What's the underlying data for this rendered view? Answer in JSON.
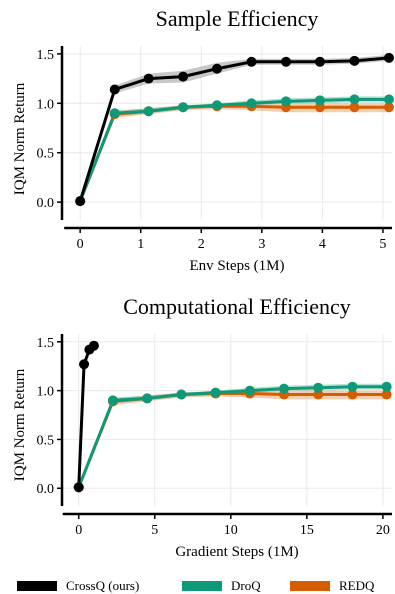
{
  "colors": {
    "crossq": "#000000",
    "droq": "#0e9a78",
    "redq": "#d55e00"
  },
  "legend": [
    {
      "label": "CrossQ (ours)",
      "color": "#000000"
    },
    {
      "label": "DroQ",
      "color": "#0e9a78"
    },
    {
      "label": "REDQ",
      "color": "#d55e00"
    }
  ],
  "chart_data": [
    {
      "type": "line",
      "title": "Sample Efficiency",
      "xlabel": "Env Steps (1M)",
      "ylabel": "IQM Norm Return",
      "xlim": [
        -0.3,
        5.15
      ],
      "ylim": [
        -0.1,
        1.58
      ],
      "xticks": [
        0,
        1,
        2,
        3,
        4,
        5
      ],
      "yticks": [
        0.0,
        0.5,
        1.0,
        1.5
      ],
      "ytick_labels": [
        "0.0",
        "0.5",
        "1.0",
        "1.5"
      ],
      "grid": true,
      "series": [
        {
          "name": "CrossQ (ours)",
          "color": "#000000",
          "x": [
            0,
            0.57,
            1.13,
            1.7,
            2.26,
            2.83,
            3.4,
            3.96,
            4.53,
            5.1
          ],
          "y": [
            0.01,
            1.14,
            1.25,
            1.27,
            1.35,
            1.42,
            1.42,
            1.42,
            1.43,
            1.46
          ],
          "lo": [
            0.01,
            1.1,
            1.2,
            1.21,
            1.3,
            1.39,
            1.39,
            1.39,
            1.4,
            1.43
          ],
          "hi": [
            0.01,
            1.18,
            1.3,
            1.33,
            1.41,
            1.45,
            1.45,
            1.45,
            1.46,
            1.49
          ]
        },
        {
          "name": "DroQ",
          "color": "#0e9a78",
          "x": [
            0,
            0.57,
            1.13,
            1.7,
            2.26,
            2.83,
            3.4,
            3.96,
            4.53,
            5.1
          ],
          "y": [
            0.01,
            0.9,
            0.92,
            0.96,
            0.98,
            1.0,
            1.02,
            1.03,
            1.04,
            1.04
          ],
          "lo": [
            0.01,
            0.87,
            0.9,
            0.94,
            0.96,
            0.98,
            1.0,
            1.0,
            1.01,
            1.01
          ],
          "hi": [
            0.01,
            0.93,
            0.95,
            0.98,
            1.0,
            1.03,
            1.05,
            1.06,
            1.07,
            1.07
          ]
        },
        {
          "name": "REDQ",
          "color": "#d55e00",
          "x": [
            0,
            0.57,
            1.13,
            1.7,
            2.26,
            2.83,
            3.4,
            3.96,
            4.53,
            5.1
          ],
          "y": [
            0.01,
            0.89,
            0.92,
            0.96,
            0.97,
            0.97,
            0.96,
            0.96,
            0.96,
            0.96
          ],
          "lo": [
            0.01,
            0.85,
            0.89,
            0.93,
            0.94,
            0.93,
            0.91,
            0.91,
            0.91,
            0.91
          ],
          "hi": [
            0.01,
            0.92,
            0.95,
            0.98,
            0.99,
            1.0,
            1.0,
            1.0,
            1.0,
            1.0
          ]
        }
      ]
    },
    {
      "type": "line",
      "title": "Computational Efficiency",
      "xlabel": "Gradient Steps (1M)",
      "ylabel": "IQM Norm Return",
      "xlim": [
        -1.1,
        20.6
      ],
      "ylim": [
        -0.1,
        1.58
      ],
      "xticks": [
        0,
        5,
        10,
        15,
        20
      ],
      "yticks": [
        0.0,
        0.5,
        1.0,
        1.5
      ],
      "ytick_labels": [
        "0.0",
        "0.5",
        "1.0",
        "1.5"
      ],
      "grid": true,
      "series": [
        {
          "name": "CrossQ (ours)",
          "color": "#000000",
          "x": [
            0,
            0.35,
            0.7,
            1.0
          ],
          "y": [
            0.01,
            1.27,
            1.42,
            1.46
          ],
          "lo": [
            0.01,
            1.25,
            1.4,
            1.44
          ],
          "hi": [
            0.01,
            1.29,
            1.44,
            1.48
          ]
        },
        {
          "name": "DroQ",
          "color": "#0e9a78",
          "x": [
            0,
            2.25,
            4.5,
            6.75,
            9.0,
            11.25,
            13.5,
            15.75,
            18.0,
            20.25
          ],
          "y": [
            0.01,
            0.9,
            0.92,
            0.96,
            0.98,
            1.0,
            1.02,
            1.03,
            1.04,
            1.04
          ],
          "lo": [
            0.01,
            0.87,
            0.9,
            0.94,
            0.96,
            0.98,
            1.0,
            1.0,
            1.01,
            1.01
          ],
          "hi": [
            0.01,
            0.93,
            0.95,
            0.98,
            1.0,
            1.03,
            1.05,
            1.06,
            1.07,
            1.07
          ]
        },
        {
          "name": "REDQ",
          "color": "#d55e00",
          "x": [
            0,
            2.25,
            4.5,
            6.75,
            9.0,
            11.25,
            13.5,
            15.75,
            18.0,
            20.25
          ],
          "y": [
            0.01,
            0.89,
            0.92,
            0.96,
            0.97,
            0.97,
            0.96,
            0.96,
            0.96,
            0.96
          ],
          "lo": [
            0.01,
            0.85,
            0.89,
            0.93,
            0.94,
            0.93,
            0.91,
            0.91,
            0.91,
            0.91
          ],
          "hi": [
            0.01,
            0.92,
            0.95,
            0.98,
            0.99,
            1.0,
            1.0,
            1.0,
            1.0,
            1.0
          ]
        }
      ]
    }
  ]
}
